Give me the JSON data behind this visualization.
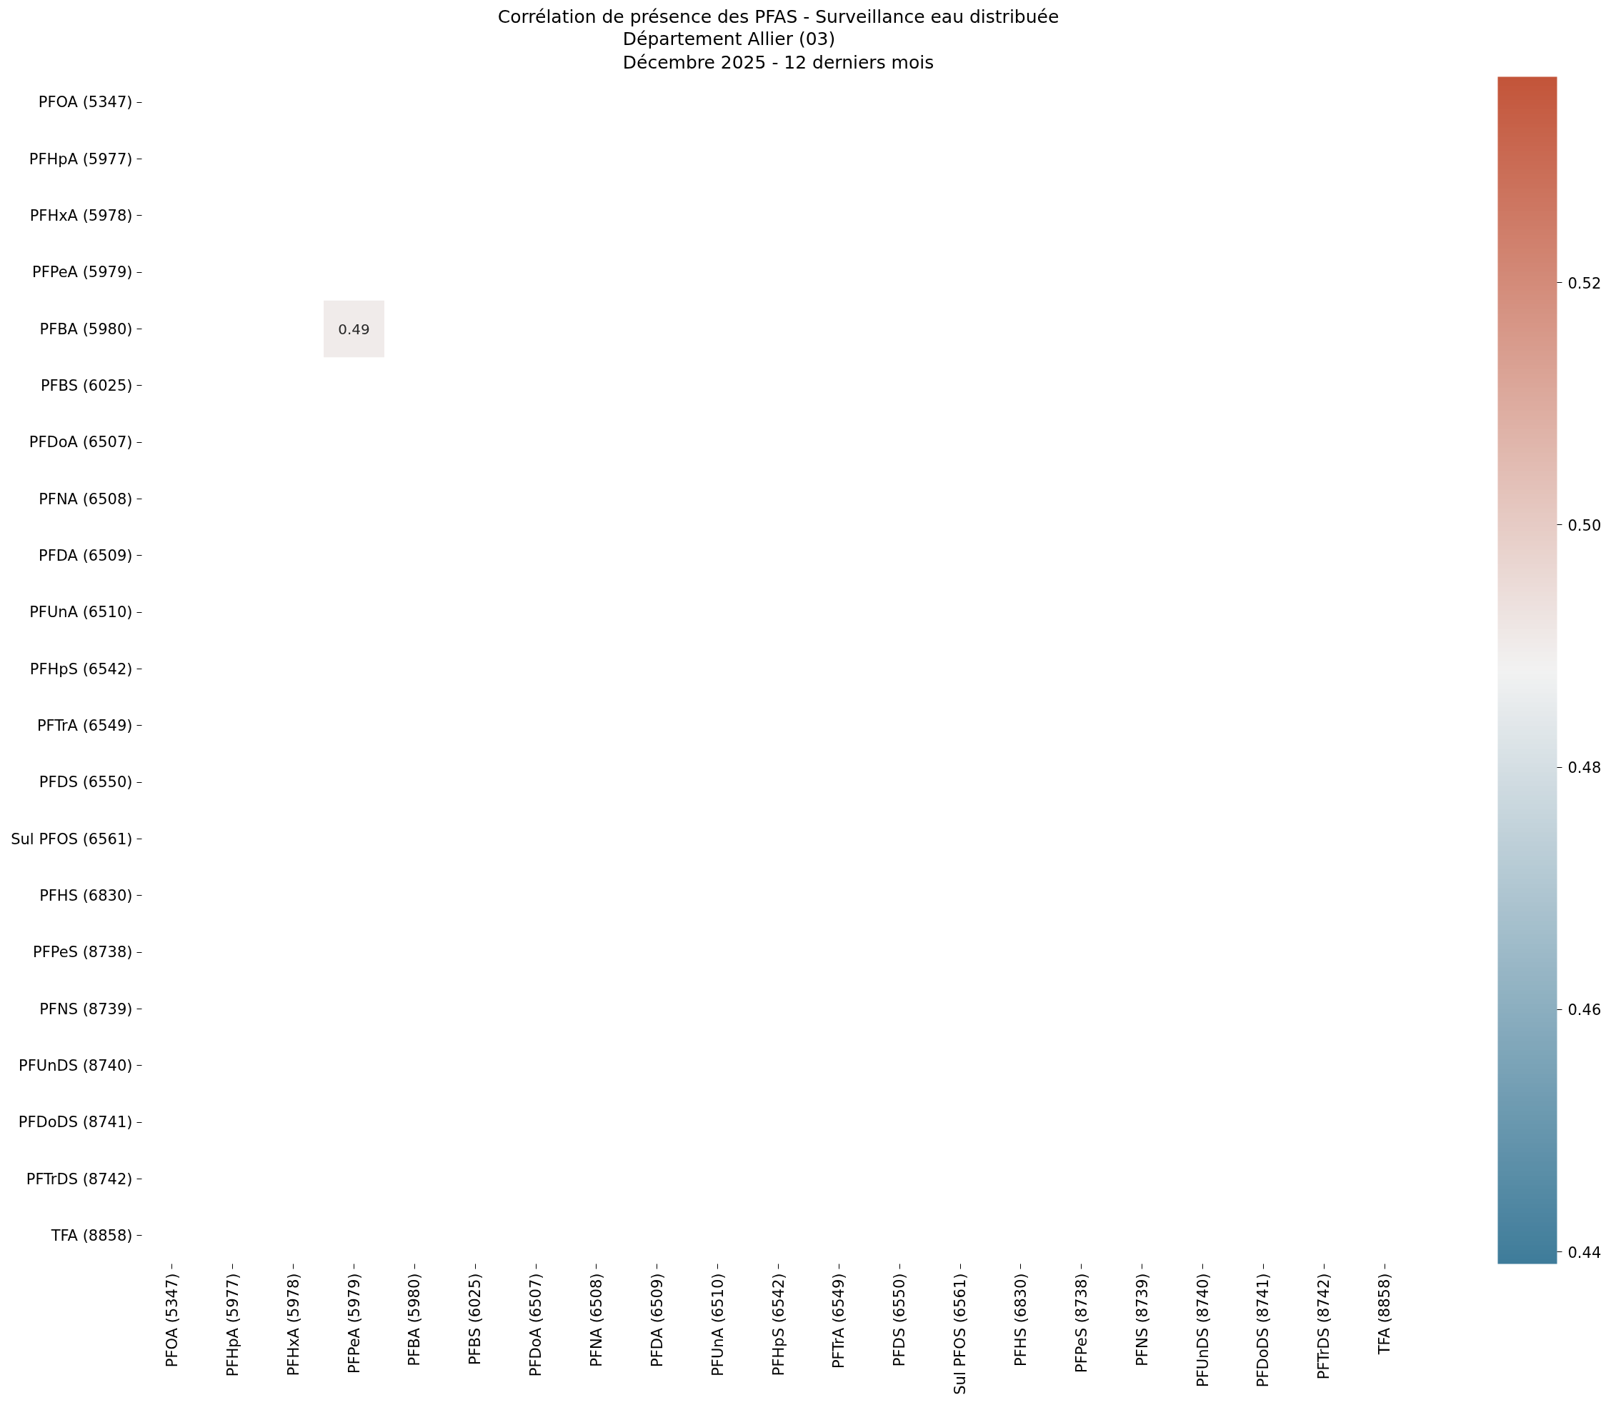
{
  "chart_data": {
    "type": "heatmap",
    "title": "Corrélation de présence des PFAS - Surveillance eau distribuée",
    "subtitle": "Département Allier (03)\nDécembre 2025 - 12 derniers mois",
    "categories": [
      "PFOA (5347)",
      "PFHpA (5977)",
      "PFHxA (5978)",
      "PFPeA (5979)",
      "PFBA (5980)",
      "PFBS (6025)",
      "PFDoA (6507)",
      "PFNA (6508)",
      "PFDA (6509)",
      "PFUnA (6510)",
      "PFHpS (6542)",
      "PFTrA (6549)",
      "PFDS (6550)",
      "Sul PFOS (6561)",
      "PFHS (6830)",
      "PFPeS (8738)",
      "PFNS (8739)",
      "PFUnDS (8740)",
      "PFDoDS (8741)",
      "PFTrDS (8742)",
      "TFA (8858)"
    ],
    "y_categories": [
      "PFOA (5347)",
      "PFHpA (5977)",
      "PFHxA (5978)",
      "PFPeA (5979)",
      "PFBA (5980)",
      "PFBS (6025)",
      "PFDoA (6507)",
      "PFNA (6508)",
      "PFDA (6509)",
      "PFUnA (6510)",
      "PFHpS (6542)",
      "PFTrA (6549)",
      "PFDS (6550)",
      "Sul PFOS (6561)",
      "PFHS (6830)",
      "PFPeS (8738)",
      "PFNS (8739)",
      "PFUnDS (8740)",
      "PFDoDS (8741)",
      "PFTrDS (8742)",
      "TFA (8858)"
    ],
    "cells": [
      [
        null,
        null,
        null,
        null,
        null,
        null,
        null,
        null,
        null,
        null,
        null,
        null,
        null,
        null,
        null,
        null,
        null,
        null,
        null,
        null,
        null
      ],
      [
        null,
        null,
        null,
        null,
        null,
        null,
        null,
        null,
        null,
        null,
        null,
        null,
        null,
        null,
        null,
        null,
        null,
        null,
        null,
        null,
        null
      ],
      [
        null,
        null,
        null,
        null,
        null,
        null,
        null,
        null,
        null,
        null,
        null,
        null,
        null,
        null,
        null,
        null,
        null,
        null,
        null,
        null,
        null
      ],
      [
        null,
        null,
        null,
        null,
        null,
        null,
        null,
        null,
        null,
        null,
        null,
        null,
        null,
        null,
        null,
        null,
        null,
        null,
        null,
        null,
        null
      ],
      [
        null,
        null,
        null,
        0.49,
        null,
        null,
        null,
        null,
        null,
        null,
        null,
        null,
        null,
        null,
        null,
        null,
        null,
        null,
        null,
        null,
        null
      ],
      [
        null,
        null,
        null,
        null,
        null,
        null,
        null,
        null,
        null,
        null,
        null,
        null,
        null,
        null,
        null,
        null,
        null,
        null,
        null,
        null,
        null
      ],
      [
        null,
        null,
        null,
        null,
        null,
        null,
        null,
        null,
        null,
        null,
        null,
        null,
        null,
        null,
        null,
        null,
        null,
        null,
        null,
        null,
        null
      ],
      [
        null,
        null,
        null,
        null,
        null,
        null,
        null,
        null,
        null,
        null,
        null,
        null,
        null,
        null,
        null,
        null,
        null,
        null,
        null,
        null,
        null
      ],
      [
        null,
        null,
        null,
        null,
        null,
        null,
        null,
        null,
        null,
        null,
        null,
        null,
        null,
        null,
        null,
        null,
        null,
        null,
        null,
        null,
        null
      ],
      [
        null,
        null,
        null,
        null,
        null,
        null,
        null,
        null,
        null,
        null,
        null,
        null,
        null,
        null,
        null,
        null,
        null,
        null,
        null,
        null,
        null
      ],
      [
        null,
        null,
        null,
        null,
        null,
        null,
        null,
        null,
        null,
        null,
        null,
        null,
        null,
        null,
        null,
        null,
        null,
        null,
        null,
        null,
        null
      ],
      [
        null,
        null,
        null,
        null,
        null,
        null,
        null,
        null,
        null,
        null,
        null,
        null,
        null,
        null,
        null,
        null,
        null,
        null,
        null,
        null,
        null
      ],
      [
        null,
        null,
        null,
        null,
        null,
        null,
        null,
        null,
        null,
        null,
        null,
        null,
        null,
        null,
        null,
        null,
        null,
        null,
        null,
        null,
        null
      ],
      [
        null,
        null,
        null,
        null,
        null,
        null,
        null,
        null,
        null,
        null,
        null,
        null,
        null,
        null,
        null,
        null,
        null,
        null,
        null,
        null,
        null
      ],
      [
        null,
        null,
        null,
        null,
        null,
        null,
        null,
        null,
        null,
        null,
        null,
        null,
        null,
        null,
        null,
        null,
        null,
        null,
        null,
        null,
        null
      ],
      [
        null,
        null,
        null,
        null,
        null,
        null,
        null,
        null,
        null,
        null,
        null,
        null,
        null,
        null,
        null,
        null,
        null,
        null,
        null,
        null,
        null
      ],
      [
        null,
        null,
        null,
        null,
        null,
        null,
        null,
        null,
        null,
        null,
        null,
        null,
        null,
        null,
        null,
        null,
        null,
        null,
        null,
        null,
        null
      ],
      [
        null,
        null,
        null,
        null,
        null,
        null,
        null,
        null,
        null,
        null,
        null,
        null,
        null,
        null,
        null,
        null,
        null,
        null,
        null,
        null,
        null
      ],
      [
        null,
        null,
        null,
        null,
        null,
        null,
        null,
        null,
        null,
        null,
        null,
        null,
        null,
        null,
        null,
        null,
        null,
        null,
        null,
        null,
        null
      ],
      [
        null,
        null,
        null,
        null,
        null,
        null,
        null,
        null,
        null,
        null,
        null,
        null,
        null,
        null,
        null,
        null,
        null,
        null,
        null,
        null,
        null
      ],
      [
        null,
        null,
        null,
        null,
        null,
        null,
        null,
        null,
        null,
        null,
        null,
        null,
        null,
        null,
        null,
        null,
        null,
        null,
        null,
        null,
        null
      ]
    ],
    "clim": [
      0.439,
      0.537
    ],
    "cticks": [
      0.44,
      0.46,
      0.48,
      {
        "value": 0.5,
        "label": "0.50"
      },
      0.52
    ],
    "data_labels": true
  }
}
